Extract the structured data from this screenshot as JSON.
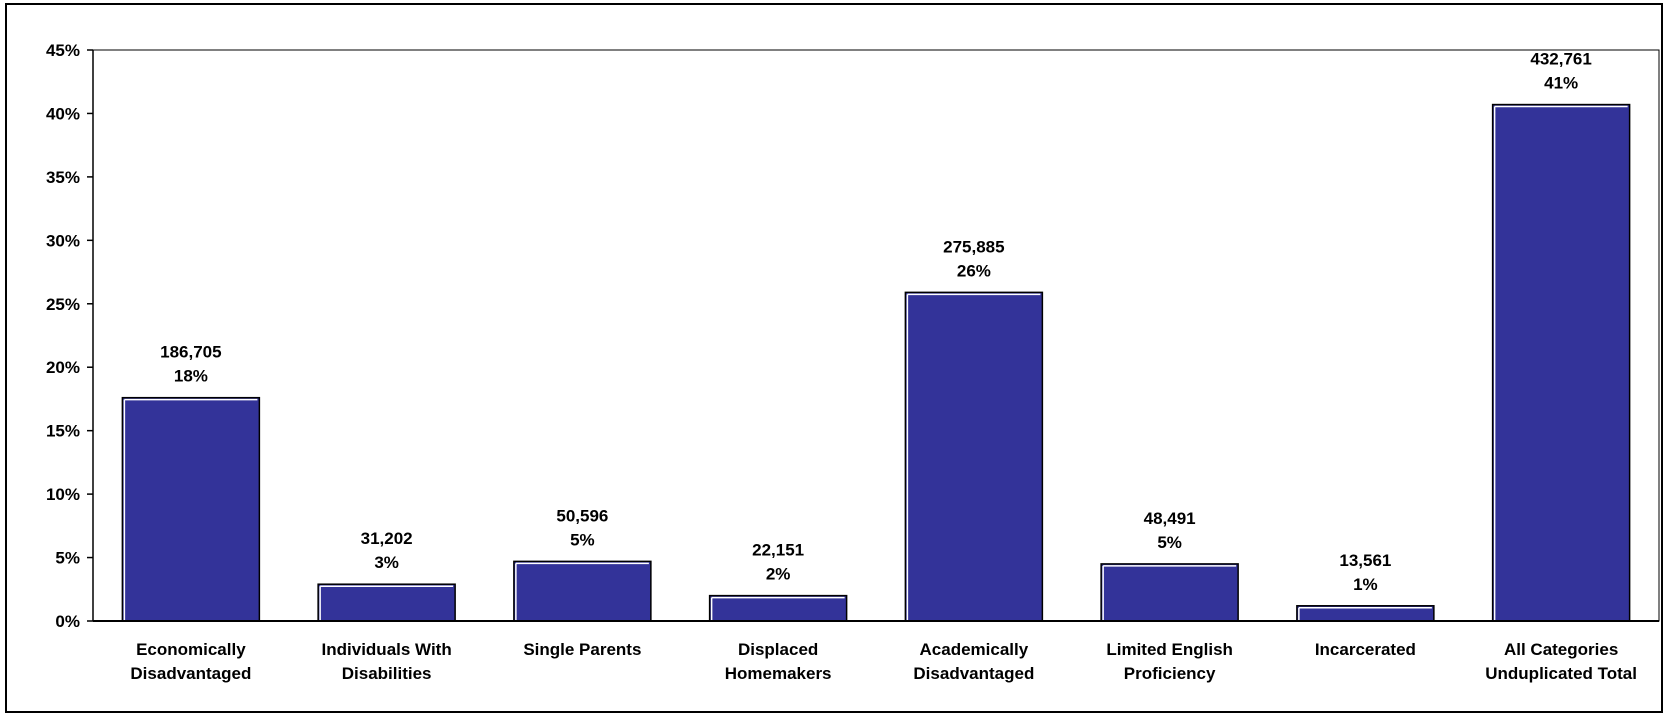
{
  "chart_data": {
    "type": "bar",
    "categories": [
      [
        "Economically",
        "Disadvantaged"
      ],
      [
        "Individuals With",
        "Disabilities"
      ],
      [
        "Single Parents"
      ],
      [
        "Displaced",
        "Homemakers"
      ],
      [
        "Academically",
        "Disadvantaged"
      ],
      [
        "Limited English",
        "Proficiency"
      ],
      [
        "Incarcerated"
      ],
      [
        "All Categories",
        "Unduplicated Total"
      ]
    ],
    "values": [
      17.6,
      2.9,
      4.7,
      2.0,
      25.9,
      4.5,
      1.2,
      40.7
    ],
    "counts": [
      "186,705",
      "31,202",
      "50,596",
      "22,151",
      "275,885",
      "48,491",
      "13,561",
      "432,761"
    ],
    "percent_labels": [
      "18%",
      "3%",
      "5%",
      "2%",
      "26%",
      "5%",
      "1%",
      "41%"
    ],
    "title": "",
    "xlabel": "",
    "ylabel": "",
    "ylim": [
      0,
      45
    ],
    "yticks": [
      0,
      5,
      10,
      15,
      20,
      25,
      30,
      35,
      40,
      45
    ],
    "ytick_labels": [
      "0%",
      "5%",
      "10%",
      "15%",
      "20%",
      "25%",
      "30%",
      "35%",
      "40%",
      "45%"
    ],
    "grid": false,
    "legend": "none",
    "colors": {
      "bar": "#333399",
      "bar_edge": "#000000",
      "bar_highlight": "#ffffff",
      "axis": "#000000",
      "frame": "#000000",
      "background": "#ffffff"
    }
  }
}
